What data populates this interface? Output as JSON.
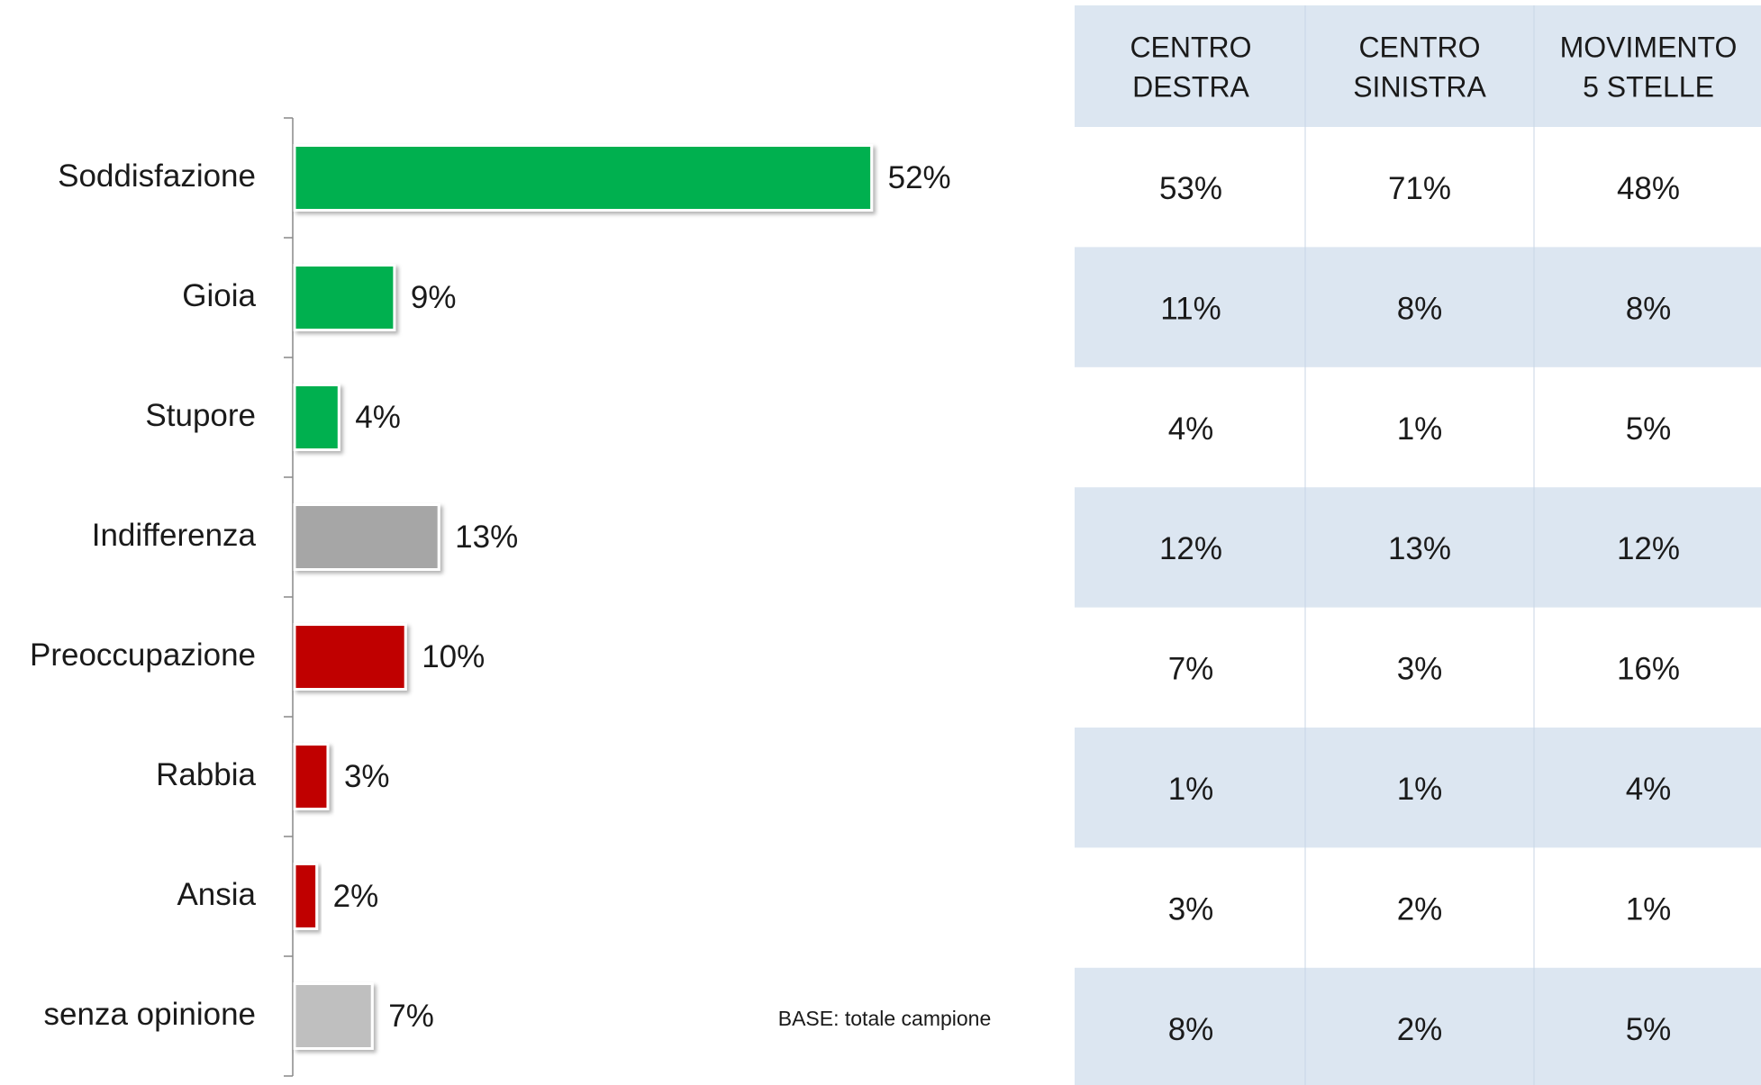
{
  "chart_data": {
    "type": "bar",
    "orientation": "horizontal",
    "categories": [
      "Soddisfazione",
      "Gioia",
      "Stupore",
      "Indifferenza",
      "Preoccupazione",
      "Rabbia",
      "Ansia",
      "senza opinione"
    ],
    "values": [
      52,
      9,
      4,
      13,
      10,
      3,
      2,
      7
    ],
    "value_labels": [
      "52%",
      "9%",
      "4%",
      "13%",
      "10%",
      "3%",
      "2%",
      "7%"
    ],
    "colors": [
      "#00b050",
      "#00b050",
      "#00b050",
      "#a6a6a6",
      "#c00000",
      "#c00000",
      "#c00000",
      "#bfbfbf"
    ]
  },
  "footnote": "BASE: totale campione",
  "table": {
    "headers": [
      [
        "CENTRO",
        "DESTRA"
      ],
      [
        "CENTRO",
        "SINISTRA"
      ],
      [
        "MOVIMENTO",
        "5 STELLE"
      ]
    ],
    "rows": [
      [
        "53%",
        "71%",
        "48%"
      ],
      [
        "11%",
        "8%",
        "8%"
      ],
      [
        "4%",
        "1%",
        "5%"
      ],
      [
        "12%",
        "13%",
        "12%"
      ],
      [
        "7%",
        "3%",
        "16%"
      ],
      [
        "1%",
        "1%",
        "4%"
      ],
      [
        "3%",
        "2%",
        "1%"
      ],
      [
        "8%",
        "2%",
        "5%"
      ]
    ]
  }
}
